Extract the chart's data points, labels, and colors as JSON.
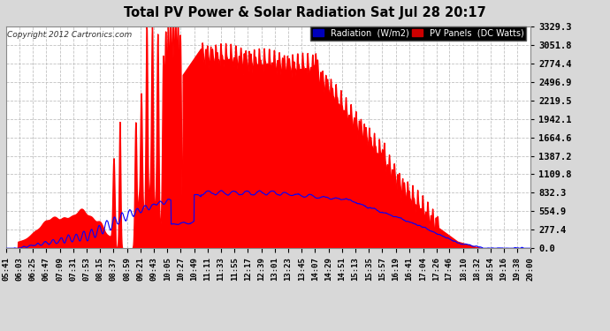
{
  "title": "Total PV Power & Solar Radiation Sat Jul 28 20:17",
  "copyright": "Copyright 2012 Cartronics.com",
  "bg_color": "#d8d8d8",
  "plot_bg_color": "#ffffff",
  "y_ticks": [
    0.0,
    277.4,
    554.9,
    832.3,
    1109.8,
    1387.2,
    1664.6,
    1942.1,
    2219.5,
    2496.9,
    2774.4,
    3051.8,
    3329.3
  ],
  "y_max": 3329.3,
  "x_labels": [
    "05:41",
    "06:03",
    "06:25",
    "06:47",
    "07:09",
    "07:31",
    "07:53",
    "08:15",
    "08:37",
    "08:59",
    "09:21",
    "09:43",
    "10:05",
    "10:27",
    "10:49",
    "11:11",
    "11:33",
    "11:55",
    "12:17",
    "12:39",
    "13:01",
    "13:23",
    "13:45",
    "14:07",
    "14:29",
    "14:51",
    "15:13",
    "15:35",
    "15:57",
    "16:19",
    "16:41",
    "17:04",
    "17:26",
    "17:46",
    "18:10",
    "18:32",
    "18:54",
    "19:16",
    "19:38",
    "20:00"
  ],
  "grid_color": "#bbbbbb",
  "red_fill_color": "#ff0000",
  "blue_line_color": "#0000ff",
  "legend_rad_color": "#0000bb",
  "legend_pv_color": "#cc0000"
}
